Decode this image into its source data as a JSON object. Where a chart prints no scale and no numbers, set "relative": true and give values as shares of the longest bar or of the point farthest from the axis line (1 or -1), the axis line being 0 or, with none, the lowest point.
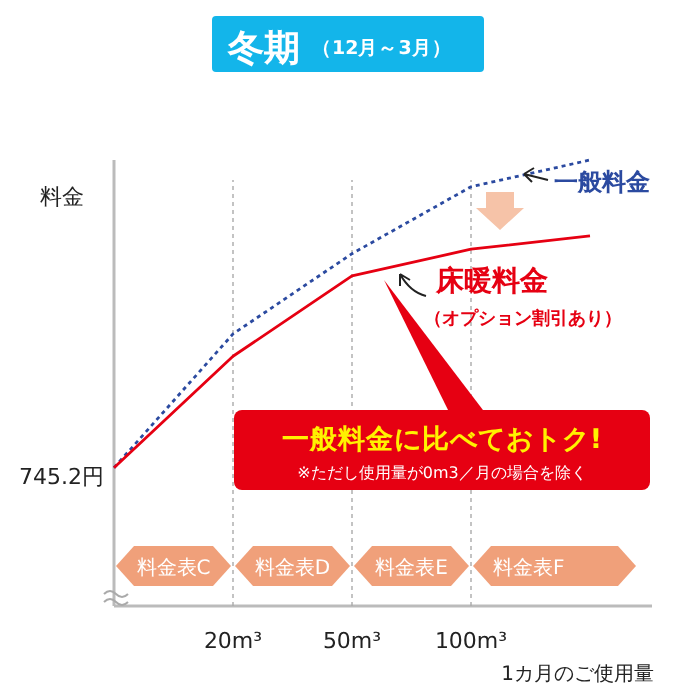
{
  "chart_data": {
    "type": "line",
    "title": "冬期",
    "subtitle": "（12月～3月）",
    "ylabel": "料金",
    "xlabel": "1カ月のご使用量",
    "categories": [
      null,
      "20m³",
      "50m³",
      "100m³",
      null
    ],
    "relative": true,
    "grid": "x",
    "series": [
      {
        "name": "一般料金",
        "color": "#2b4aa0",
        "line_style": "dotted",
        "values": [
          0.31,
          0.61,
          0.79,
          0.94,
          1
        ]
      },
      {
        "name": "床暖料金",
        "color": "#e60012",
        "line_style": "solid",
        "values": [
          0.31,
          0.56,
          0.74,
          0.8,
          0.83
        ]
      }
    ],
    "annotations": [
      "745.2円",
      "（オプション割引あり）",
      "一般料金に比べておトク!",
      "※ただし使用量が0m3／月の場合を除く",
      "料金表C",
      "料金表D",
      "料金表E",
      "料金表F"
    ]
  }
}
